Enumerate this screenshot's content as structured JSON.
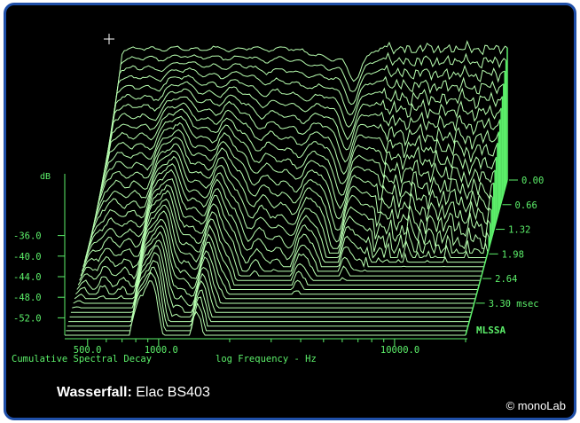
{
  "caption": {
    "title_bold": "Wasserfall:",
    "title_rest": "Elac BS403"
  },
  "copyright": "© monoLab",
  "colors": {
    "background": "#000000",
    "trace": "#b8ffb0",
    "trace_fill": "#000000",
    "axis": "#5cf06a",
    "frame": "#1f4fa8",
    "caption": "#ffffff"
  },
  "chart_data": {
    "type": "line",
    "title": "Cumulative Spectral Decay",
    "xlabel": "log Frequency - Hz",
    "ylabel": "dB",
    "zlabel": "msec",
    "brand": "MLSSA",
    "x_scale": "log",
    "x_ticks": [
      "500.0",
      "1000.0",
      "10000.0"
    ],
    "y_ticks": [
      "-36.0",
      "-40.0",
      "-44.0",
      "-48.0",
      "-52.0"
    ],
    "z_ticks": [
      "0.00",
      "0.66",
      "1.32",
      "1.98",
      "2.64",
      "3.30 msec"
    ],
    "xlim": [
      400,
      20000
    ],
    "ylim": [
      -54,
      -26
    ],
    "zlim": [
      0,
      3.3
    ],
    "slice_count": 35
  }
}
